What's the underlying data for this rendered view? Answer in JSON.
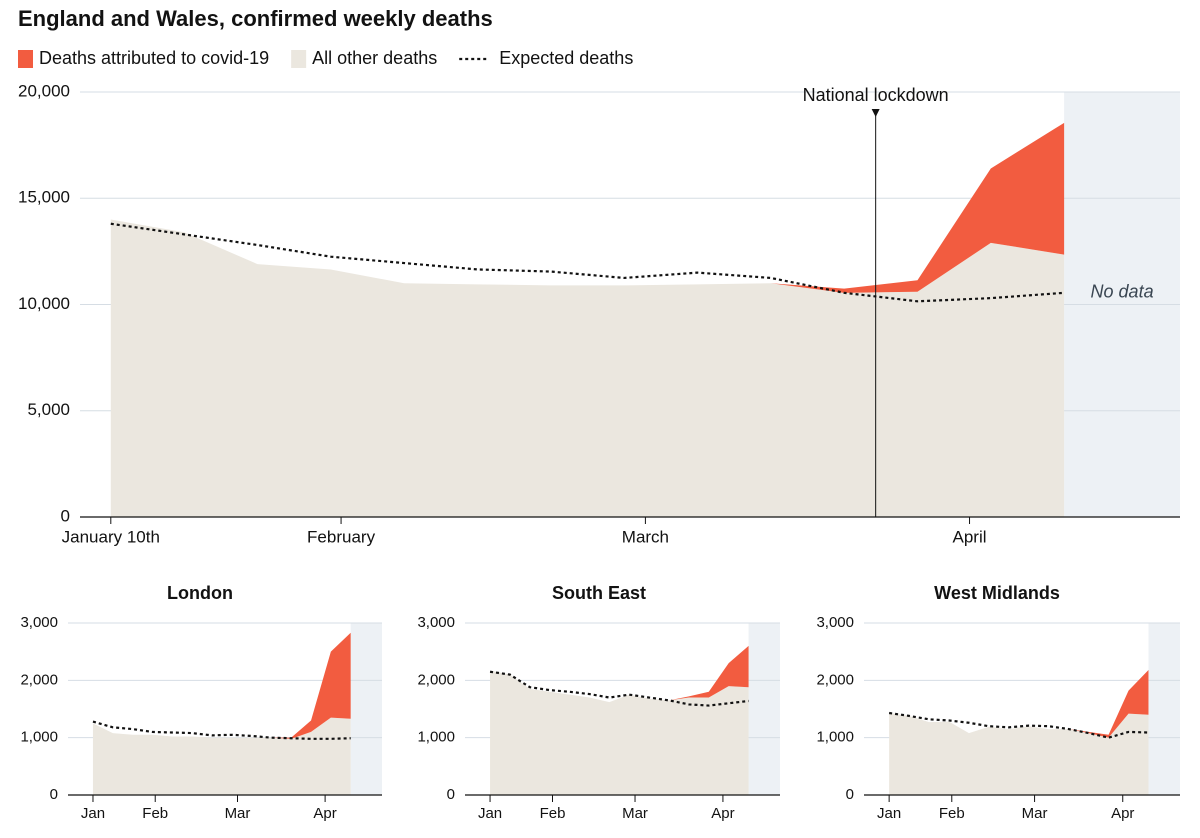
{
  "chart_data": [
    {
      "type": "area",
      "title": "England and Wales, confirmed weekly deaths",
      "x": [
        0,
        1,
        2,
        3,
        4,
        5,
        6,
        7,
        8,
        9,
        10,
        11,
        12,
        13
      ],
      "xlim": [
        -0.42,
        14.58
      ],
      "xticks": [
        {
          "value": 0,
          "label": "January 10th"
        },
        {
          "value": 3.14,
          "label": "February"
        },
        {
          "value": 7.29,
          "label": "March"
        },
        {
          "value": 11.71,
          "label": "April"
        }
      ],
      "ylim": [
        0,
        20000
      ],
      "yticks": [
        0,
        {
          "value": 5000,
          "label": "5,000"
        },
        {
          "value": 10000,
          "label": "10,000"
        },
        {
          "value": 15000,
          "label": "15,000"
        },
        {
          "value": 20000,
          "label": "20,000"
        }
      ],
      "grid": true,
      "legend": "top-left",
      "series": [
        {
          "name": "All other deaths",
          "color": "#ebe7df",
          "values": [
            14000,
            13400,
            11900,
            11650,
            11000,
            10950,
            10900,
            10900,
            10950,
            11000,
            10550,
            10600,
            12900,
            12350
          ]
        },
        {
          "name": "Deaths attributed to covid-19",
          "color": "#f25c40",
          "values": [
            0,
            0,
            0,
            0,
            0,
            0,
            0,
            0,
            0,
            0,
            200,
            540,
            3500,
            6200
          ]
        },
        {
          "name": "Expected deaths",
          "color": "#121212",
          "line": "dotted",
          "values": [
            13800,
            13300,
            12800,
            12250,
            11950,
            11650,
            11550,
            11250,
            11500,
            11250,
            10550,
            10150,
            10300,
            10550
          ]
        }
      ],
      "annotations": [
        {
          "text": "National lockdown",
          "x": 10.43
        },
        {
          "text": "No data"
        }
      ]
    },
    {
      "type": "area",
      "title": "London",
      "x": [
        0,
        1,
        2,
        3,
        4,
        5,
        6,
        7,
        8,
        9,
        10,
        11,
        12,
        13
      ],
      "xlim": [
        -1.26,
        14.58
      ],
      "xticks": [
        {
          "value": 0,
          "label": "Jan"
        },
        {
          "value": 3.14,
          "label": "Feb"
        },
        {
          "value": 7.29,
          "label": "Mar"
        },
        {
          "value": 11.71,
          "label": "Apr"
        }
      ],
      "ylim": [
        0,
        3000
      ],
      "yticks": [
        0,
        {
          "value": 1000,
          "label": "1,000"
        },
        {
          "value": 2000,
          "label": "2,000"
        },
        {
          "value": 3000,
          "label": "3,000"
        }
      ],
      "grid": true,
      "series": [
        {
          "color": "#ebe7df",
          "values": [
            1250,
            1080,
            1050,
            1050,
            1020,
            1020,
            1000,
            1000,
            1000,
            1000,
            980,
            1100,
            1350,
            1330
          ]
        },
        {
          "color": "#f25c40",
          "values": [
            0,
            0,
            0,
            0,
            0,
            0,
            0,
            0,
            0,
            0,
            20,
            200,
            1150,
            1500
          ]
        },
        {
          "color": "#121212",
          "line": "dotted",
          "values": [
            1280,
            1180,
            1150,
            1100,
            1090,
            1080,
            1040,
            1050,
            1030,
            1000,
            990,
            980,
            980,
            990
          ]
        }
      ]
    },
    {
      "type": "area",
      "title": "South East",
      "x": [
        0,
        1,
        2,
        3,
        4,
        5,
        6,
        7,
        8,
        9,
        10,
        11,
        12,
        13
      ],
      "xlim": [
        -1.26,
        14.58
      ],
      "xticks": [
        {
          "value": 0,
          "label": "Jan"
        },
        {
          "value": 3.14,
          "label": "Feb"
        },
        {
          "value": 7.29,
          "label": "Mar"
        },
        {
          "value": 11.71,
          "label": "Apr"
        }
      ],
      "ylim": [
        0,
        3000
      ],
      "yticks": [
        0,
        {
          "value": 1000,
          "label": "1,000"
        },
        {
          "value": 2000,
          "label": "2,000"
        },
        {
          "value": 3000,
          "label": "3,000"
        }
      ],
      "grid": true,
      "series": [
        {
          "color": "#ebe7df",
          "values": [
            2170,
            2100,
            1850,
            1800,
            1750,
            1700,
            1620,
            1750,
            1680,
            1650,
            1700,
            1700,
            1900,
            1880
          ]
        },
        {
          "color": "#f25c40",
          "values": [
            0,
            0,
            0,
            0,
            0,
            0,
            0,
            0,
            0,
            0,
            20,
            100,
            400,
            720
          ]
        },
        {
          "color": "#121212",
          "line": "dotted",
          "values": [
            2150,
            2100,
            1880,
            1830,
            1800,
            1760,
            1700,
            1750,
            1700,
            1650,
            1580,
            1560,
            1600,
            1640
          ]
        }
      ]
    },
    {
      "type": "area",
      "title": "West Midlands",
      "x": [
        0,
        1,
        2,
        3,
        4,
        5,
        6,
        7,
        8,
        9,
        10,
        11,
        12,
        13
      ],
      "xlim": [
        -1.26,
        14.58
      ],
      "xticks": [
        {
          "value": 0,
          "label": "Jan"
        },
        {
          "value": 3.14,
          "label": "Feb"
        },
        {
          "value": 7.29,
          "label": "Mar"
        },
        {
          "value": 11.71,
          "label": "Apr"
        }
      ],
      "ylim": [
        0,
        3000
      ],
      "yticks": [
        0,
        {
          "value": 1000,
          "label": "1,000"
        },
        {
          "value": 2000,
          "label": "2,000"
        },
        {
          "value": 3000,
          "label": "3,000"
        }
      ],
      "grid": true,
      "series": [
        {
          "color": "#ebe7df",
          "values": [
            1430,
            1380,
            1270,
            1280,
            1080,
            1190,
            1150,
            1200,
            1150,
            1150,
            1080,
            1000,
            1420,
            1400
          ]
        },
        {
          "color": "#f25c40",
          "values": [
            0,
            0,
            0,
            0,
            0,
            0,
            0,
            0,
            0,
            0,
            20,
            50,
            400,
            780
          ]
        },
        {
          "color": "#121212",
          "line": "dotted",
          "values": [
            1430,
            1380,
            1320,
            1300,
            1260,
            1200,
            1180,
            1210,
            1200,
            1150,
            1080,
            1000,
            1100,
            1090
          ]
        }
      ]
    }
  ]
}
